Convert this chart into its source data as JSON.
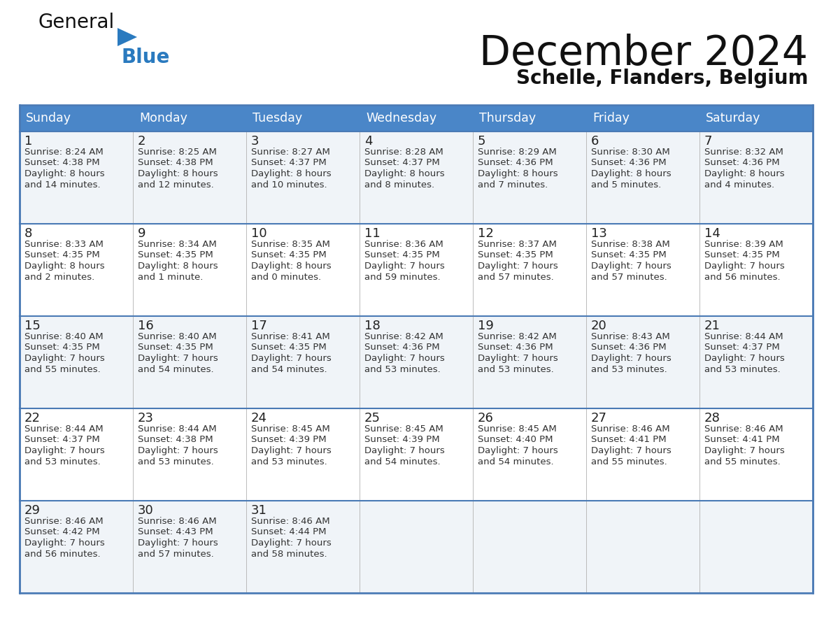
{
  "title": "December 2024",
  "subtitle": "Schelle, Flanders, Belgium",
  "header_color": "#4a86c8",
  "header_text_color": "#ffffff",
  "cell_bg_even": "#f0f4f8",
  "cell_bg_odd": "#ffffff",
  "cell_border_color": "#4a7ab5",
  "row_sep_color": "#4a7ab5",
  "text_color": "#333333",
  "day_num_color": "#222222",
  "title_color": "#111111",
  "logo_general_color": "#111111",
  "logo_blue_color": "#2a7abf",
  "logo_tri_color": "#2a7abf",
  "day_names": [
    "Sunday",
    "Monday",
    "Tuesday",
    "Wednesday",
    "Thursday",
    "Friday",
    "Saturday"
  ],
  "weeks": [
    [
      {
        "day": 1,
        "sunrise": "8:24 AM",
        "sunset": "4:38 PM",
        "daylight": "8 hours and 14 minutes."
      },
      {
        "day": 2,
        "sunrise": "8:25 AM",
        "sunset": "4:38 PM",
        "daylight": "8 hours and 12 minutes."
      },
      {
        "day": 3,
        "sunrise": "8:27 AM",
        "sunset": "4:37 PM",
        "daylight": "8 hours and 10 minutes."
      },
      {
        "day": 4,
        "sunrise": "8:28 AM",
        "sunset": "4:37 PM",
        "daylight": "8 hours and 8 minutes."
      },
      {
        "day": 5,
        "sunrise": "8:29 AM",
        "sunset": "4:36 PM",
        "daylight": "8 hours and 7 minutes."
      },
      {
        "day": 6,
        "sunrise": "8:30 AM",
        "sunset": "4:36 PM",
        "daylight": "8 hours and 5 minutes."
      },
      {
        "day": 7,
        "sunrise": "8:32 AM",
        "sunset": "4:36 PM",
        "daylight": "8 hours and 4 minutes."
      }
    ],
    [
      {
        "day": 8,
        "sunrise": "8:33 AM",
        "sunset": "4:35 PM",
        "daylight": "8 hours and 2 minutes."
      },
      {
        "day": 9,
        "sunrise": "8:34 AM",
        "sunset": "4:35 PM",
        "daylight": "8 hours and 1 minute."
      },
      {
        "day": 10,
        "sunrise": "8:35 AM",
        "sunset": "4:35 PM",
        "daylight": "8 hours and 0 minutes."
      },
      {
        "day": 11,
        "sunrise": "8:36 AM",
        "sunset": "4:35 PM",
        "daylight": "7 hours and 59 minutes."
      },
      {
        "day": 12,
        "sunrise": "8:37 AM",
        "sunset": "4:35 PM",
        "daylight": "7 hours and 57 minutes."
      },
      {
        "day": 13,
        "sunrise": "8:38 AM",
        "sunset": "4:35 PM",
        "daylight": "7 hours and 57 minutes."
      },
      {
        "day": 14,
        "sunrise": "8:39 AM",
        "sunset": "4:35 PM",
        "daylight": "7 hours and 56 minutes."
      }
    ],
    [
      {
        "day": 15,
        "sunrise": "8:40 AM",
        "sunset": "4:35 PM",
        "daylight": "7 hours and 55 minutes."
      },
      {
        "day": 16,
        "sunrise": "8:40 AM",
        "sunset": "4:35 PM",
        "daylight": "7 hours and 54 minutes."
      },
      {
        "day": 17,
        "sunrise": "8:41 AM",
        "sunset": "4:35 PM",
        "daylight": "7 hours and 54 minutes."
      },
      {
        "day": 18,
        "sunrise": "8:42 AM",
        "sunset": "4:36 PM",
        "daylight": "7 hours and 53 minutes."
      },
      {
        "day": 19,
        "sunrise": "8:42 AM",
        "sunset": "4:36 PM",
        "daylight": "7 hours and 53 minutes."
      },
      {
        "day": 20,
        "sunrise": "8:43 AM",
        "sunset": "4:36 PM",
        "daylight": "7 hours and 53 minutes."
      },
      {
        "day": 21,
        "sunrise": "8:44 AM",
        "sunset": "4:37 PM",
        "daylight": "7 hours and 53 minutes."
      }
    ],
    [
      {
        "day": 22,
        "sunrise": "8:44 AM",
        "sunset": "4:37 PM",
        "daylight": "7 hours and 53 minutes."
      },
      {
        "day": 23,
        "sunrise": "8:44 AM",
        "sunset": "4:38 PM",
        "daylight": "7 hours and 53 minutes."
      },
      {
        "day": 24,
        "sunrise": "8:45 AM",
        "sunset": "4:39 PM",
        "daylight": "7 hours and 53 minutes."
      },
      {
        "day": 25,
        "sunrise": "8:45 AM",
        "sunset": "4:39 PM",
        "daylight": "7 hours and 54 minutes."
      },
      {
        "day": 26,
        "sunrise": "8:45 AM",
        "sunset": "4:40 PM",
        "daylight": "7 hours and 54 minutes."
      },
      {
        "day": 27,
        "sunrise": "8:46 AM",
        "sunset": "4:41 PM",
        "daylight": "7 hours and 55 minutes."
      },
      {
        "day": 28,
        "sunrise": "8:46 AM",
        "sunset": "4:41 PM",
        "daylight": "7 hours and 55 minutes."
      }
    ],
    [
      {
        "day": 29,
        "sunrise": "8:46 AM",
        "sunset": "4:42 PM",
        "daylight": "7 hours and 56 minutes."
      },
      {
        "day": 30,
        "sunrise": "8:46 AM",
        "sunset": "4:43 PM",
        "daylight": "7 hours and 57 minutes."
      },
      {
        "day": 31,
        "sunrise": "8:46 AM",
        "sunset": "4:44 PM",
        "daylight": "7 hours and 58 minutes."
      },
      null,
      null,
      null,
      null
    ]
  ]
}
